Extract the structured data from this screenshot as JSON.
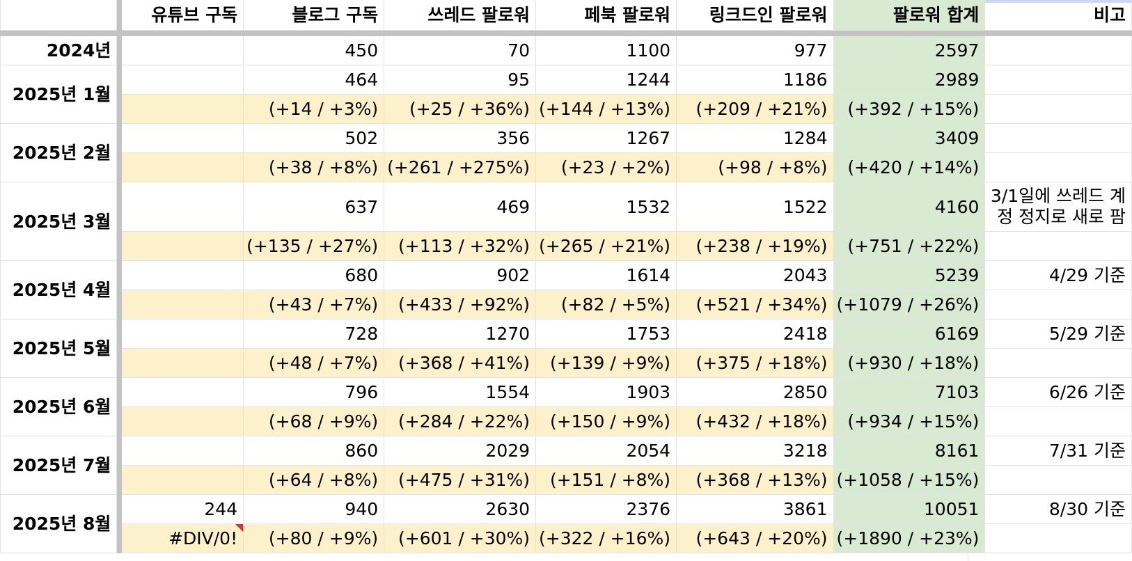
{
  "columns": {
    "youtube": "유튜브 구독",
    "blog": "블로그 구독",
    "threads": "쓰레드 팔로워",
    "facebook": "페북 팔로워",
    "linkedin": "링크드인 팔로워",
    "total": "팔로워 합계",
    "note": "비고"
  },
  "rows": {
    "y2024": {
      "label": "2024년",
      "youtube": "",
      "blog": "450",
      "threads": "70",
      "facebook": "1100",
      "linkedin": "977",
      "total": "2597",
      "note": ""
    },
    "m1": {
      "label": "2025년 1월",
      "vals": {
        "youtube": "",
        "blog": "464",
        "threads": "95",
        "facebook": "1244",
        "linkedin": "1186",
        "total": "2989",
        "note": ""
      },
      "chg": {
        "youtube": "",
        "blog": "(+14 / +3%)",
        "threads": "(+25 / +36%)",
        "facebook": "(+144 / +13%)",
        "linkedin": "(+209 / +21%)",
        "total": "(+392 / +15%)"
      }
    },
    "m2": {
      "label": "2025년 2월",
      "vals": {
        "youtube": "",
        "blog": "502",
        "threads": "356",
        "facebook": "1267",
        "linkedin": "1284",
        "total": "3409",
        "note": ""
      },
      "chg": {
        "youtube": "",
        "blog": "(+38 / +8%)",
        "threads": "(+261 / +275%)",
        "facebook": "(+23 / +2%)",
        "linkedin": "(+98 / +8%)",
        "total": "(+420 / +14%)"
      }
    },
    "m3": {
      "label": "2025년 3월",
      "vals": {
        "youtube": "",
        "blog": "637",
        "threads": "469",
        "facebook": "1532",
        "linkedin": "1522",
        "total": "4160",
        "note": "3/1일에 쓰레드 계정 정지로 새로 팜"
      },
      "chg": {
        "youtube": "",
        "blog": "(+135 / +27%)",
        "threads": "(+113 / +32%)",
        "facebook": "(+265 / +21%)",
        "linkedin": "(+238 / +19%)",
        "total": "(+751 / +22%)"
      }
    },
    "m4": {
      "label": "2025년 4월",
      "vals": {
        "youtube": "",
        "blog": "680",
        "threads": "902",
        "facebook": "1614",
        "linkedin": "2043",
        "total": "5239",
        "note": "4/29 기준"
      },
      "chg": {
        "youtube": "",
        "blog": "(+43 / +7%)",
        "threads": "(+433 / +92%)",
        "facebook": "(+82 / +5%)",
        "linkedin": "(+521 / +34%)",
        "total": "(+1079 / +26%)"
      }
    },
    "m5": {
      "label": "2025년 5월",
      "vals": {
        "youtube": "",
        "blog": "728",
        "threads": "1270",
        "facebook": "1753",
        "linkedin": "2418",
        "total": "6169",
        "note": "5/29 기준"
      },
      "chg": {
        "youtube": "",
        "blog": "(+48 / +7%)",
        "threads": "(+368 / +41%)",
        "facebook": "(+139 / +9%)",
        "linkedin": "(+375 / +18%)",
        "total": "(+930 / +18%)"
      }
    },
    "m6": {
      "label": "2025년 6월",
      "vals": {
        "youtube": "",
        "blog": "796",
        "threads": "1554",
        "facebook": "1903",
        "linkedin": "2850",
        "total": "7103",
        "note": "6/26 기준"
      },
      "chg": {
        "youtube": "",
        "blog": "(+68 / +9%)",
        "threads": "(+284 / +22%)",
        "facebook": "(+150 / +9%)",
        "linkedin": "(+432 / +18%)",
        "total": "(+934 / +15%)"
      }
    },
    "m7": {
      "label": "2025년 7월",
      "vals": {
        "youtube": "",
        "blog": "860",
        "threads": "2029",
        "facebook": "2054",
        "linkedin": "3218",
        "total": "8161",
        "note": "7/31 기준"
      },
      "chg": {
        "youtube": "",
        "blog": "(+64 / +8%)",
        "threads": "(+475 / +31%)",
        "facebook": "(+151 / +8%)",
        "linkedin": "(+368 / +13%)",
        "total": "(+1058 / +15%)"
      }
    },
    "m8": {
      "label": "2025년 8월",
      "vals": {
        "youtube": "244",
        "blog": "940",
        "threads": "2630",
        "facebook": "2376",
        "linkedin": "3861",
        "total": "10051",
        "note": "8/30 기준"
      },
      "chg": {
        "youtube": "#DIV/0!",
        "blog": "(+80 / +9%)",
        "threads": "(+601 / +30%)",
        "facebook": "(+322 / +16%)",
        "linkedin": "(+643 / +20%)",
        "total": "(+1890 / +23%)"
      }
    }
  },
  "colors": {
    "change_row": "#fdf1cc",
    "total_column": "#d9ead3",
    "frozen_separator": "#c3c3c3",
    "gridline": "#e2e3e3",
    "error_marker": "#e52d27"
  }
}
